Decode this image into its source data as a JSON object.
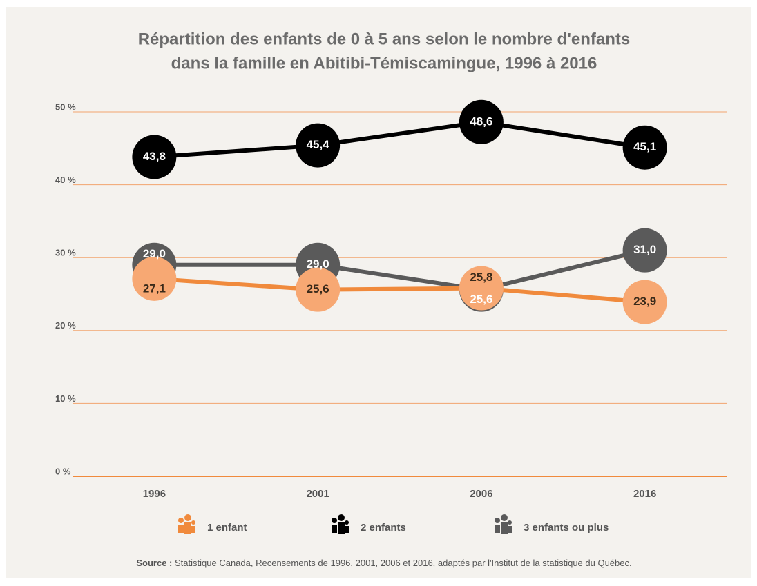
{
  "chart_data": {
    "type": "line",
    "title": [
      "Répartition des enfants de 0 à 5 ans selon le nombre d'enfants",
      "dans la famille en Abitibi-Témiscamingue, 1996 à 2016"
    ],
    "categories": [
      "1996",
      "2001",
      "2006",
      "2016"
    ],
    "series": [
      {
        "name": "1 enfant",
        "color": "#f08a3c",
        "marker_color": "#f7a873",
        "values": [
          27.1,
          25.6,
          25.8,
          23.9
        ],
        "value_labels": [
          "27,1",
          "25,6",
          "25,8",
          "23,9"
        ]
      },
      {
        "name": "2 enfants",
        "color": "#000000",
        "marker_color": "#000000",
        "values": [
          43.8,
          45.4,
          48.6,
          45.1
        ],
        "value_labels": [
          "43,8",
          "45,4",
          "48,6",
          "45,1"
        ]
      },
      {
        "name": "3 enfants ou plus",
        "color": "#5a5a5a",
        "marker_color": "#5a5a5a",
        "values": [
          29.0,
          29.0,
          25.6,
          31.0
        ],
        "value_labels": [
          "29,0",
          "29,0",
          "25,6",
          "31,0"
        ]
      }
    ],
    "ylim": [
      0,
      50
    ],
    "yticks": [
      {
        "value": 0,
        "label": "0 %"
      },
      {
        "value": 10,
        "label": "10 %"
      },
      {
        "value": 20,
        "label": "20 %"
      },
      {
        "value": 30,
        "label": "30 %"
      },
      {
        "value": 40,
        "label": "40 %"
      },
      {
        "value": 50,
        "label": "50 %"
      }
    ],
    "grid": true,
    "source_label": "Source :",
    "source_text": "Statistique Canada, Recensements de 1996, 2001, 2006 et 2016, adaptés par l'Institut de la statistique du Québec."
  }
}
